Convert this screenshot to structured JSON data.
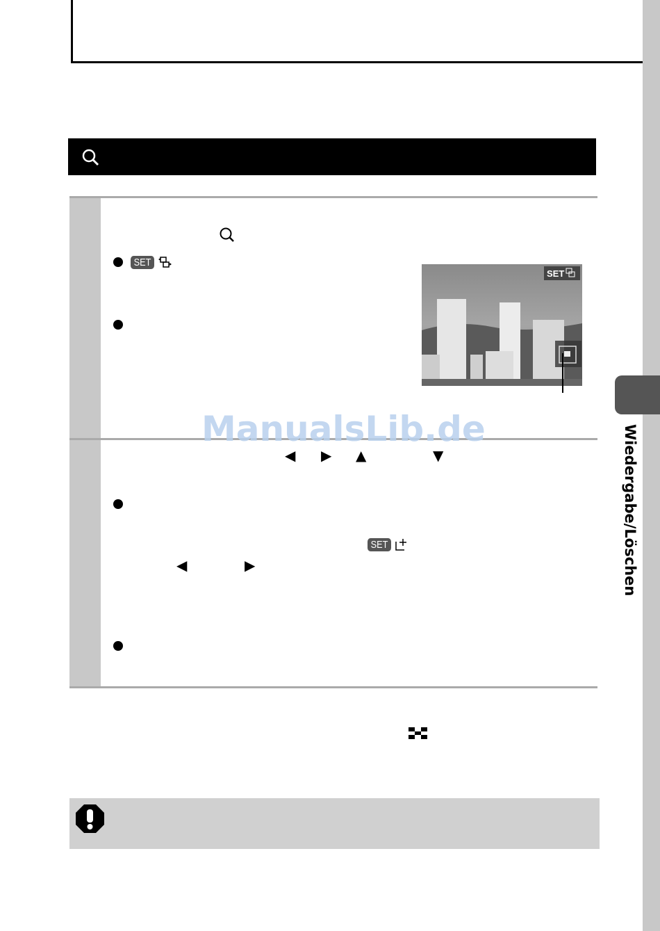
{
  "header": {
    "icon": "magnifier-icon"
  },
  "step1": {
    "inline_icon": "magnifier-icon",
    "bullets": [
      {
        "badge": "SET",
        "icon": "zoom-frame-icon"
      },
      {}
    ],
    "screen": {
      "badge": "SET",
      "icon": "zoom-frame-icon"
    }
  },
  "step2": {
    "arrows": [
      "arrow-left-icon",
      "arrow-right-icon",
      "arrow-up-icon",
      "arrow-down-icon"
    ],
    "bullets": [
      {
        "badge": "SET",
        "icon": "move-frame-icon",
        "arrows": [
          "arrow-left-icon",
          "arrow-right-icon"
        ]
      },
      {}
    ]
  },
  "footer_icon": "index-checker-icon",
  "caution": {
    "icon": "caution-icon"
  },
  "side_tab": {
    "label": "Wiedergabe/Löschen"
  },
  "watermark": "ManualsLib.de",
  "colors": {
    "header_bg": "#000000",
    "step_column": "#c8c8c8",
    "side_bar": "#c8c8c8",
    "side_tab": "#555555",
    "caution_bg": "#d0d0d0",
    "watermark": "#b9d1ee"
  }
}
